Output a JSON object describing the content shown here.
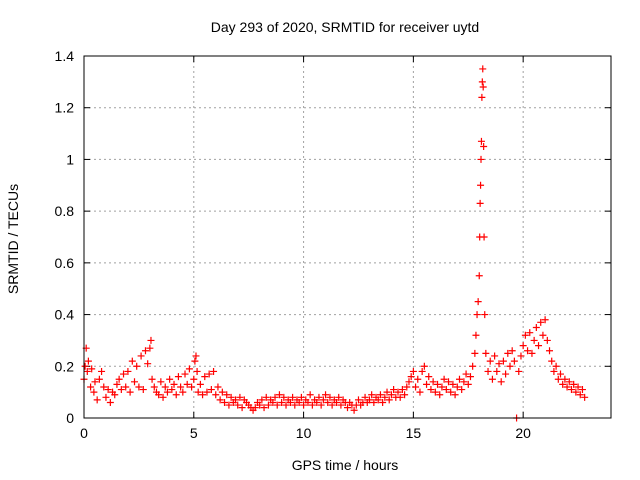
{
  "chart_data": {
    "type": "scatter",
    "title": "Day 293 of 2020, SRMTID for receiver uytd",
    "xlabel": "GPS time / hours",
    "ylabel": "SRMTID / TECUs",
    "xlim": [
      0,
      24
    ],
    "ylim": [
      0,
      1.4
    ],
    "xticks": [
      0,
      5,
      10,
      15,
      20
    ],
    "xtick_labels": [
      "0",
      "5",
      "10",
      "15",
      "20"
    ],
    "yticks": [
      0,
      0.2,
      0.4,
      0.6,
      0.8,
      1.0,
      1.2,
      1.4
    ],
    "ytick_labels": [
      "0",
      "0.2",
      "0.4",
      "0.6",
      "0.8",
      "1",
      "1.2",
      "1.4"
    ],
    "grid": true,
    "marker": "+",
    "color": "#ff0000",
    "series": [
      {
        "name": "SRMTID",
        "points": [
          [
            0.0,
            0.15
          ],
          [
            0.05,
            0.2
          ],
          [
            0.1,
            0.27
          ],
          [
            0.15,
            0.18
          ],
          [
            0.2,
            0.22
          ],
          [
            0.3,
            0.12
          ],
          [
            0.35,
            0.19
          ],
          [
            0.45,
            0.1
          ],
          [
            0.5,
            0.14
          ],
          [
            0.6,
            0.07
          ],
          [
            0.7,
            0.15
          ],
          [
            0.8,
            0.18
          ],
          [
            0.9,
            0.12
          ],
          [
            1.0,
            0.08
          ],
          [
            1.1,
            0.11
          ],
          [
            1.2,
            0.06
          ],
          [
            1.3,
            0.1
          ],
          [
            1.4,
            0.09
          ],
          [
            1.5,
            0.13
          ],
          [
            1.6,
            0.15
          ],
          [
            1.7,
            0.11
          ],
          [
            1.8,
            0.17
          ],
          [
            1.9,
            0.12
          ],
          [
            2.0,
            0.18
          ],
          [
            2.1,
            0.1
          ],
          [
            2.2,
            0.22
          ],
          [
            2.3,
            0.14
          ],
          [
            2.4,
            0.2
          ],
          [
            2.5,
            0.12
          ],
          [
            2.6,
            0.24
          ],
          [
            2.7,
            0.11
          ],
          [
            2.8,
            0.26
          ],
          [
            2.9,
            0.21
          ],
          [
            3.0,
            0.27
          ],
          [
            3.05,
            0.3
          ],
          [
            3.1,
            0.15
          ],
          [
            3.2,
            0.12
          ],
          [
            3.3,
            0.1
          ],
          [
            3.4,
            0.09
          ],
          [
            3.5,
            0.14
          ],
          [
            3.6,
            0.08
          ],
          [
            3.7,
            0.12
          ],
          [
            3.8,
            0.1
          ],
          [
            3.9,
            0.15
          ],
          [
            4.0,
            0.11
          ],
          [
            4.1,
            0.13
          ],
          [
            4.2,
            0.09
          ],
          [
            4.3,
            0.16
          ],
          [
            4.4,
            0.12
          ],
          [
            4.5,
            0.1
          ],
          [
            4.6,
            0.17
          ],
          [
            4.7,
            0.13
          ],
          [
            4.8,
            0.19
          ],
          [
            4.9,
            0.12
          ],
          [
            5.0,
            0.15
          ],
          [
            5.05,
            0.22
          ],
          [
            5.1,
            0.24
          ],
          [
            5.15,
            0.18
          ],
          [
            5.2,
            0.1
          ],
          [
            5.3,
            0.13
          ],
          [
            5.4,
            0.09
          ],
          [
            5.5,
            0.16
          ],
          [
            5.6,
            0.1
          ],
          [
            5.7,
            0.17
          ],
          [
            5.8,
            0.11
          ],
          [
            5.9,
            0.18
          ],
          [
            6.0,
            0.09
          ],
          [
            6.1,
            0.12
          ],
          [
            6.2,
            0.07
          ],
          [
            6.3,
            0.1
          ],
          [
            6.4,
            0.06
          ],
          [
            6.5,
            0.09
          ],
          [
            6.6,
            0.05
          ],
          [
            6.7,
            0.08
          ],
          [
            6.8,
            0.06
          ],
          [
            6.9,
            0.07
          ],
          [
            7.0,
            0.05
          ],
          [
            7.1,
            0.08
          ],
          [
            7.2,
            0.04
          ],
          [
            7.3,
            0.07
          ],
          [
            7.4,
            0.06
          ],
          [
            7.5,
            0.05
          ],
          [
            7.6,
            0.04
          ],
          [
            7.7,
            0.03
          ],
          [
            7.8,
            0.04
          ],
          [
            7.9,
            0.06
          ],
          [
            8.0,
            0.05
          ],
          [
            8.1,
            0.07
          ],
          [
            8.2,
            0.04
          ],
          [
            8.3,
            0.08
          ],
          [
            8.4,
            0.05
          ],
          [
            8.5,
            0.07
          ],
          [
            8.6,
            0.06
          ],
          [
            8.7,
            0.08
          ],
          [
            8.8,
            0.05
          ],
          [
            8.9,
            0.09
          ],
          [
            9.0,
            0.06
          ],
          [
            9.1,
            0.08
          ],
          [
            9.2,
            0.05
          ],
          [
            9.3,
            0.07
          ],
          [
            9.4,
            0.06
          ],
          [
            9.5,
            0.08
          ],
          [
            9.6,
            0.05
          ],
          [
            9.7,
            0.07
          ],
          [
            9.8,
            0.06
          ],
          [
            9.9,
            0.08
          ],
          [
            10.0,
            0.05
          ],
          [
            10.1,
            0.07
          ],
          [
            10.2,
            0.06
          ],
          [
            10.3,
            0.09
          ],
          [
            10.4,
            0.05
          ],
          [
            10.5,
            0.07
          ],
          [
            10.6,
            0.06
          ],
          [
            10.7,
            0.08
          ],
          [
            10.8,
            0.05
          ],
          [
            10.9,
            0.07
          ],
          [
            11.0,
            0.09
          ],
          [
            11.1,
            0.06
          ],
          [
            11.2,
            0.08
          ],
          [
            11.3,
            0.05
          ],
          [
            11.4,
            0.07
          ],
          [
            11.5,
            0.06
          ],
          [
            11.6,
            0.08
          ],
          [
            11.7,
            0.05
          ],
          [
            11.8,
            0.07
          ],
          [
            11.9,
            0.06
          ],
          [
            12.0,
            0.04
          ],
          [
            12.1,
            0.06
          ],
          [
            12.2,
            0.05
          ],
          [
            12.3,
            0.03
          ],
          [
            12.4,
            0.05
          ],
          [
            12.5,
            0.07
          ],
          [
            12.6,
            0.05
          ],
          [
            12.7,
            0.06
          ],
          [
            12.8,
            0.08
          ],
          [
            12.9,
            0.06
          ],
          [
            13.0,
            0.07
          ],
          [
            13.1,
            0.09
          ],
          [
            13.2,
            0.06
          ],
          [
            13.3,
            0.08
          ],
          [
            13.4,
            0.07
          ],
          [
            13.5,
            0.09
          ],
          [
            13.6,
            0.06
          ],
          [
            13.7,
            0.08
          ],
          [
            13.8,
            0.1
          ],
          [
            13.9,
            0.07
          ],
          [
            14.0,
            0.09
          ],
          [
            14.1,
            0.11
          ],
          [
            14.2,
            0.08
          ],
          [
            14.3,
            0.1
          ],
          [
            14.4,
            0.08
          ],
          [
            14.5,
            0.11
          ],
          [
            14.6,
            0.09
          ],
          [
            14.7,
            0.12
          ],
          [
            14.8,
            0.14
          ],
          [
            14.9,
            0.16
          ],
          [
            15.0,
            0.18
          ],
          [
            15.1,
            0.12
          ],
          [
            15.2,
            0.15
          ],
          [
            15.3,
            0.1
          ],
          [
            15.4,
            0.18
          ],
          [
            15.5,
            0.2
          ],
          [
            15.6,
            0.13
          ],
          [
            15.7,
            0.16
          ],
          [
            15.8,
            0.11
          ],
          [
            15.9,
            0.14
          ],
          [
            16.0,
            0.1
          ],
          [
            16.1,
            0.13
          ],
          [
            16.2,
            0.09
          ],
          [
            16.3,
            0.12
          ],
          [
            16.4,
            0.15
          ],
          [
            16.5,
            0.11
          ],
          [
            16.6,
            0.14
          ],
          [
            16.7,
            0.1
          ],
          [
            16.8,
            0.13
          ],
          [
            16.9,
            0.09
          ],
          [
            17.0,
            0.12
          ],
          [
            17.1,
            0.15
          ],
          [
            17.2,
            0.11
          ],
          [
            17.3,
            0.14
          ],
          [
            17.4,
            0.17
          ],
          [
            17.5,
            0.13
          ],
          [
            17.6,
            0.16
          ],
          [
            17.7,
            0.2
          ],
          [
            17.8,
            0.25
          ],
          [
            17.85,
            0.32
          ],
          [
            17.9,
            0.4
          ],
          [
            17.95,
            0.45
          ],
          [
            18.0,
            0.55
          ],
          [
            18.02,
            0.7
          ],
          [
            18.04,
            0.83
          ],
          [
            18.06,
            0.9
          ],
          [
            18.08,
            1.0
          ],
          [
            18.1,
            1.07
          ],
          [
            18.12,
            1.24
          ],
          [
            18.14,
            1.3
          ],
          [
            18.16,
            1.35
          ],
          [
            18.18,
            1.28
          ],
          [
            18.2,
            1.05
          ],
          [
            18.22,
            0.7
          ],
          [
            18.25,
            0.4
          ],
          [
            18.3,
            0.25
          ],
          [
            18.4,
            0.18
          ],
          [
            18.5,
            0.22
          ],
          [
            18.6,
            0.15
          ],
          [
            18.7,
            0.24
          ],
          [
            18.8,
            0.18
          ],
          [
            18.9,
            0.21
          ],
          [
            19.0,
            0.14
          ],
          [
            19.1,
            0.22
          ],
          [
            19.2,
            0.17
          ],
          [
            19.3,
            0.25
          ],
          [
            19.4,
            0.2
          ],
          [
            19.5,
            0.26
          ],
          [
            19.6,
            0.22
          ],
          [
            19.7,
            0.0
          ],
          [
            19.8,
            0.18
          ],
          [
            19.9,
            0.24
          ],
          [
            20.0,
            0.28
          ],
          [
            20.1,
            0.32
          ],
          [
            20.2,
            0.26
          ],
          [
            20.3,
            0.33
          ],
          [
            20.4,
            0.25
          ],
          [
            20.5,
            0.3
          ],
          [
            20.6,
            0.35
          ],
          [
            20.7,
            0.28
          ],
          [
            20.8,
            0.37
          ],
          [
            20.9,
            0.32
          ],
          [
            21.0,
            0.38
          ],
          [
            21.1,
            0.3
          ],
          [
            21.2,
            0.26
          ],
          [
            21.3,
            0.22
          ],
          [
            21.4,
            0.18
          ],
          [
            21.5,
            0.2
          ],
          [
            21.6,
            0.15
          ],
          [
            21.7,
            0.17
          ],
          [
            21.8,
            0.13
          ],
          [
            21.9,
            0.15
          ],
          [
            22.0,
            0.12
          ],
          [
            22.1,
            0.14
          ],
          [
            22.2,
            0.11
          ],
          [
            22.3,
            0.13
          ],
          [
            22.4,
            0.1
          ],
          [
            22.5,
            0.12
          ],
          [
            22.6,
            0.09
          ],
          [
            22.7,
            0.11
          ],
          [
            22.8,
            0.08
          ]
        ]
      }
    ]
  }
}
